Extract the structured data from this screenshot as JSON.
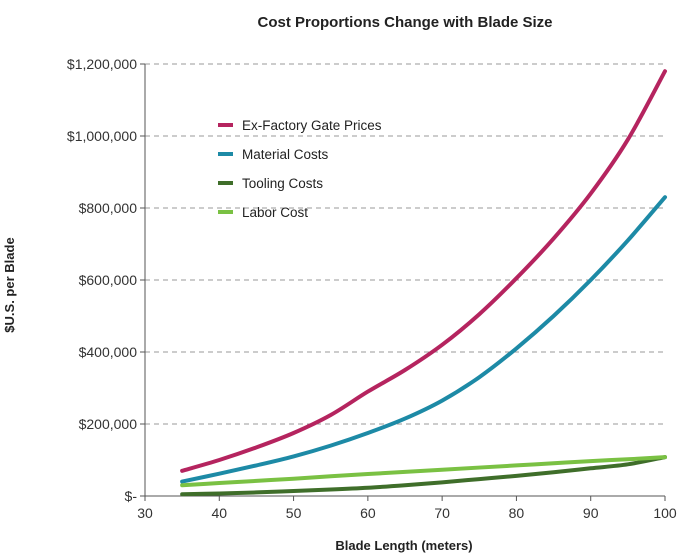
{
  "chart_data": {
    "type": "line",
    "title": "Cost Proportions Change with Blade Size",
    "xlabel": "Blade Length (meters)",
    "ylabel": "$U.S. per Blade",
    "xlim": [
      30,
      100
    ],
    "ylim": [
      0,
      1200000
    ],
    "x_ticks": [
      30,
      40,
      50,
      60,
      70,
      80,
      90,
      100
    ],
    "y_ticks": [
      0,
      200000,
      400000,
      600000,
      800000,
      1000000,
      1200000
    ],
    "y_tick_labels": [
      "$-",
      "$200,000",
      "$400,000",
      "$600,000",
      "$800,000",
      "$1,000,000",
      "$1,200,000"
    ],
    "x_tick_labels": [
      "30",
      "40",
      "50",
      "60",
      "70",
      "80",
      "90",
      "100"
    ],
    "grid": "horizontal dashed",
    "legend_position": "top-left",
    "x": [
      35,
      40,
      45,
      50,
      55,
      60,
      65,
      70,
      75,
      80,
      85,
      90,
      95,
      100
    ],
    "series": [
      {
        "name": "Ex-Factory Gate Prices",
        "color": "#b5245f",
        "values": [
          70000,
          100000,
          135000,
          175000,
          225000,
          290000,
          350000,
          420000,
          505000,
          605000,
          715000,
          840000,
          990000,
          1180000
        ]
      },
      {
        "name": "Material Costs",
        "color": "#1d8aa6",
        "values": [
          40000,
          62000,
          85000,
          110000,
          140000,
          175000,
          215000,
          265000,
          330000,
          410000,
          500000,
          600000,
          710000,
          830000
        ]
      },
      {
        "name": "Tooling Costs",
        "color": "#3f6e2a",
        "values": [
          5000,
          7000,
          10000,
          14000,
          18000,
          23000,
          30000,
          38000,
          47000,
          56000,
          66000,
          77000,
          88000,
          108000
        ]
      },
      {
        "name": "Labor Cost",
        "color": "#7ac143",
        "values": [
          30000,
          36000,
          42000,
          48000,
          55000,
          61000,
          67000,
          73000,
          79000,
          85000,
          91000,
          97000,
          102000,
          108000
        ]
      }
    ]
  }
}
